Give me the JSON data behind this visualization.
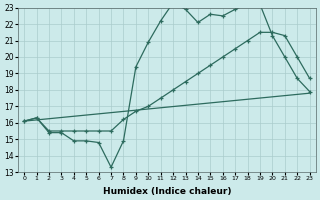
{
  "xlabel": "Humidex (Indice chaleur)",
  "bg_color": "#cceaea",
  "grid_color": "#aacccc",
  "line_color": "#2d6b5e",
  "xlim": [
    -0.5,
    23.5
  ],
  "ylim": [
    13,
    23
  ],
  "xticks": [
    0,
    1,
    2,
    3,
    4,
    5,
    6,
    7,
    8,
    9,
    10,
    11,
    12,
    13,
    14,
    15,
    16,
    17,
    18,
    19,
    20,
    21,
    22,
    23
  ],
  "yticks": [
    13,
    14,
    15,
    16,
    17,
    18,
    19,
    20,
    21,
    22,
    23
  ],
  "line1_x": [
    0,
    1,
    2,
    3,
    4,
    5,
    6,
    7,
    8,
    9,
    10,
    11,
    12,
    13,
    14,
    15,
    16,
    17,
    18,
    19,
    20,
    21,
    22,
    23
  ],
  "line1_y": [
    16.1,
    16.3,
    15.4,
    15.4,
    14.9,
    14.9,
    14.8,
    13.3,
    14.9,
    19.4,
    20.9,
    22.2,
    23.3,
    22.9,
    22.1,
    22.6,
    22.5,
    22.9,
    23.2,
    23.2,
    21.3,
    20.0,
    18.7,
    17.9
  ],
  "line2_x": [
    0,
    1,
    2,
    3,
    4,
    5,
    6,
    7,
    8,
    9,
    10,
    11,
    12,
    13,
    14,
    15,
    16,
    17,
    18,
    19,
    20,
    21,
    22,
    23
  ],
  "line2_y": [
    16.1,
    16.3,
    15.5,
    15.5,
    15.5,
    15.5,
    15.5,
    15.5,
    16.2,
    16.7,
    17.0,
    17.5,
    18.0,
    18.5,
    19.0,
    19.5,
    20.0,
    20.5,
    21.0,
    21.5,
    21.5,
    21.3,
    20.0,
    18.7
  ],
  "line3_x": [
    0,
    23
  ],
  "line3_y": [
    16.1,
    17.8
  ]
}
